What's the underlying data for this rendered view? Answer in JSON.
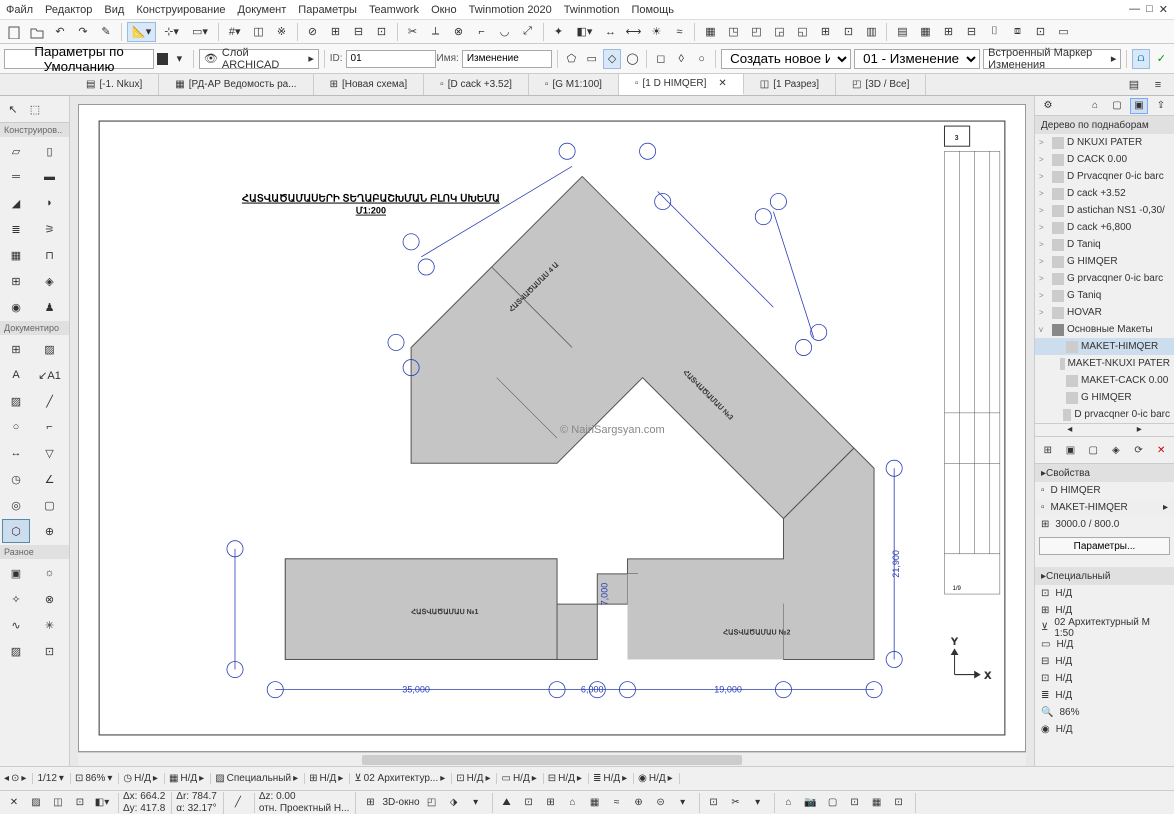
{
  "menu": [
    "Файл",
    "Редактор",
    "Вид",
    "Конструирование",
    "Документ",
    "Параметры",
    "Teamwork",
    "Окно",
    "Twinmotion 2020",
    "Twinmotion",
    "Помощь"
  ],
  "toolbar2": {
    "defaults_label": "Параметры по Умолчанию",
    "layer_label": "Слой ARCHICAD",
    "id_label": "ID:",
    "id_value": "01",
    "name_label": "Имя:",
    "name_value": "Изменение",
    "create_label": "Создать новое Изменение",
    "change_label": "01 - Изменение",
    "marker_label": "Встроенный Маркер Изменения"
  },
  "tabs": [
    {
      "label": "[-1. Nkux]",
      "icon": "plan"
    },
    {
      "label": "[РД-АР Ведомость ра...",
      "icon": "sheet"
    },
    {
      "label": "[Новая схема]",
      "icon": "grid"
    },
    {
      "label": "[D cack +3.52]",
      "icon": "doc"
    },
    {
      "label": "[G M1:100]",
      "icon": "doc"
    },
    {
      "label": "[1 D HIMQER]",
      "icon": "doc",
      "active": true,
      "closable": true
    },
    {
      "label": "[1 Разрез]",
      "icon": "section"
    },
    {
      "label": "[3D / Все]",
      "icon": "cube"
    }
  ],
  "left_arrow_tool": "arrow",
  "left_sections": [
    {
      "title": "Конструиров..",
      "tools": [
        "wall",
        "column",
        "beam",
        "slab",
        "roof",
        "shell",
        "morph",
        "stair",
        "railing",
        "curtain",
        "door",
        "window",
        "skylight",
        "opening",
        "corner",
        "object"
      ]
    },
    {
      "title": "Документиро",
      "tools": [
        "mesh",
        "zone",
        "text",
        "label",
        "fill",
        "line",
        "arc",
        "polyline",
        "dim",
        "level",
        "radial",
        "angle",
        "detail",
        "worksheet",
        "change",
        "grid2"
      ]
    },
    {
      "title": "Разное",
      "tools": [
        "camera",
        "sun",
        "sunpath",
        "lamp",
        "hotspot",
        "hotspot2",
        "figure",
        "drawing2"
      ]
    }
  ],
  "tree_title": "Дерево по поднаборам",
  "tree": [
    {
      "label": "D NKUXI PATER",
      "chev": ">"
    },
    {
      "label": "D CACK 0.00",
      "chev": ">"
    },
    {
      "label": "D Prvacqner 0-ic barc",
      "chev": ">"
    },
    {
      "label": "D cack +3.52",
      "chev": ">"
    },
    {
      "label": "D astichan NS1 -0,30/",
      "chev": ">"
    },
    {
      "label": "D cack +6,800",
      "chev": ">"
    },
    {
      "label": "D Taniq",
      "chev": ">"
    },
    {
      "label": "G HIMQER",
      "chev": ">"
    },
    {
      "label": "G prvacqner 0-ic barc",
      "chev": ">"
    },
    {
      "label": "G Taniq",
      "chev": ">"
    },
    {
      "label": "HOVAR",
      "chev": ">"
    },
    {
      "label": "Основные Макеты",
      "chev": "v",
      "folder": true
    },
    {
      "label": "MAKET-HIMQER",
      "indent": 1,
      "sel": true
    },
    {
      "label": "MAKET-NKUXI PATER",
      "indent": 1
    },
    {
      "label": "MAKET-CACK 0.00",
      "indent": 1
    },
    {
      "label": "G HIMQER",
      "indent": 1
    },
    {
      "label": "D prvacqner 0-ic barc",
      "indent": 1
    }
  ],
  "props_title": "Свойства",
  "props": {
    "name": "D HIMQER",
    "maket": "MAKET-HIMQER",
    "size": "3000.0 / 800.0"
  },
  "props_button": "Параметры...",
  "special_title": "Специальный",
  "special": [
    "Н/Д",
    "Н/Д",
    "02 Архитектурный M 1:50",
    "Н/Д",
    "Н/Д",
    "Н/Д",
    "Н/Д",
    "86%",
    "Н/Д"
  ],
  "statusbar1": {
    "page": "1/12",
    "zoom": "86%",
    "scale1": "Н/Д",
    "scale2": "Н/Д",
    "special": "Специальный",
    "scale3": "Н/Д",
    "arch": "02 Архитектур...",
    "s4": "Н/Д",
    "s5": "Н/Д",
    "s6": "Н/Д",
    "s7": "Н/Д",
    "s8": "Н/Д"
  },
  "statusbar2": {
    "dx": "Δx: 664.2",
    "dy": "Δy: 417.8",
    "dr": "Δr: 784.7",
    "da": "α: 32.17°",
    "dz": "Δz: 0.00",
    "rel": "отн. Проектный Н...",
    "win": "3D-окно"
  },
  "drawing": {
    "page_num": "3",
    "title": "ՀԱՏՎԱԾԱՄԱՍԵՐԻ ՏԵՂԱԲԱՇԽՄԱՆ ԲԼՈԿ ՍԽԵՄԱ",
    "scale": "Մ1:200",
    "watermark": "© NairiSargsyan.com",
    "bg": "#ffffff",
    "building_fill": "#c5c5c5",
    "building_stroke": "#555555",
    "dim_color": "#2b3fb5",
    "circle_stroke": "#2b3fb5",
    "compass_x": "X",
    "compass_y": "Y",
    "dims_bottom": [
      "35,000",
      "6,000",
      "19,000"
    ],
    "dim_right": "21,900",
    "dim_side": "7,000",
    "title_block_num": "1/9"
  }
}
